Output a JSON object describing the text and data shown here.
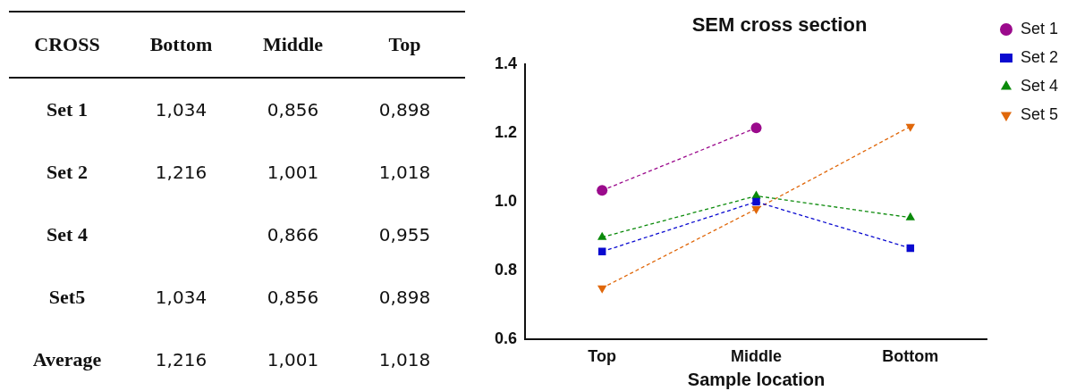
{
  "chart_data": [
    {
      "type": "other",
      "annotations": [
        "CROSS",
        "Bottom",
        "Middle",
        "Top",
        "Set 1",
        "1,034",
        "0,856",
        "0,898",
        "Set 2",
        "1,216",
        "1,001",
        "1,018",
        "Set 4",
        "0,866",
        "0,955",
        "Set5",
        "1,034",
        "0,856",
        "0,898",
        "Average",
        "1,216",
        "1,001",
        "1,018"
      ]
    },
    {
      "type": "line",
      "title": "SEM cross section",
      "xlabel": "Sample location",
      "categories": [
        "Top",
        "Middle",
        "Bottom"
      ],
      "series": [
        {
          "name": "Set 1",
          "color": "#9b0a8c",
          "marker": "circle",
          "values": [
            1.034,
            1.216,
            null
          ]
        },
        {
          "name": "Set 2",
          "color": "#0a0ad0",
          "marker": "square",
          "values": [
            0.856,
            1.001,
            0.866
          ]
        },
        {
          "name": "Set 4",
          "color": "#0a8a0a",
          "marker": "triangle",
          "values": [
            0.898,
            1.018,
            0.955
          ]
        },
        {
          "name": "Set 5",
          "color": "#e0670a",
          "marker": "triangle-down",
          "values": [
            0.75,
            0.98,
            1.22
          ]
        }
      ],
      "ylim": [
        0.6,
        1.4
      ],
      "yticks": [
        0.6,
        0.8,
        {
          "value": 1,
          "label": "1.0"
        },
        1.2,
        1.4
      ],
      "grid": false,
      "legend": "right",
      "line_style": "dashed"
    }
  ]
}
